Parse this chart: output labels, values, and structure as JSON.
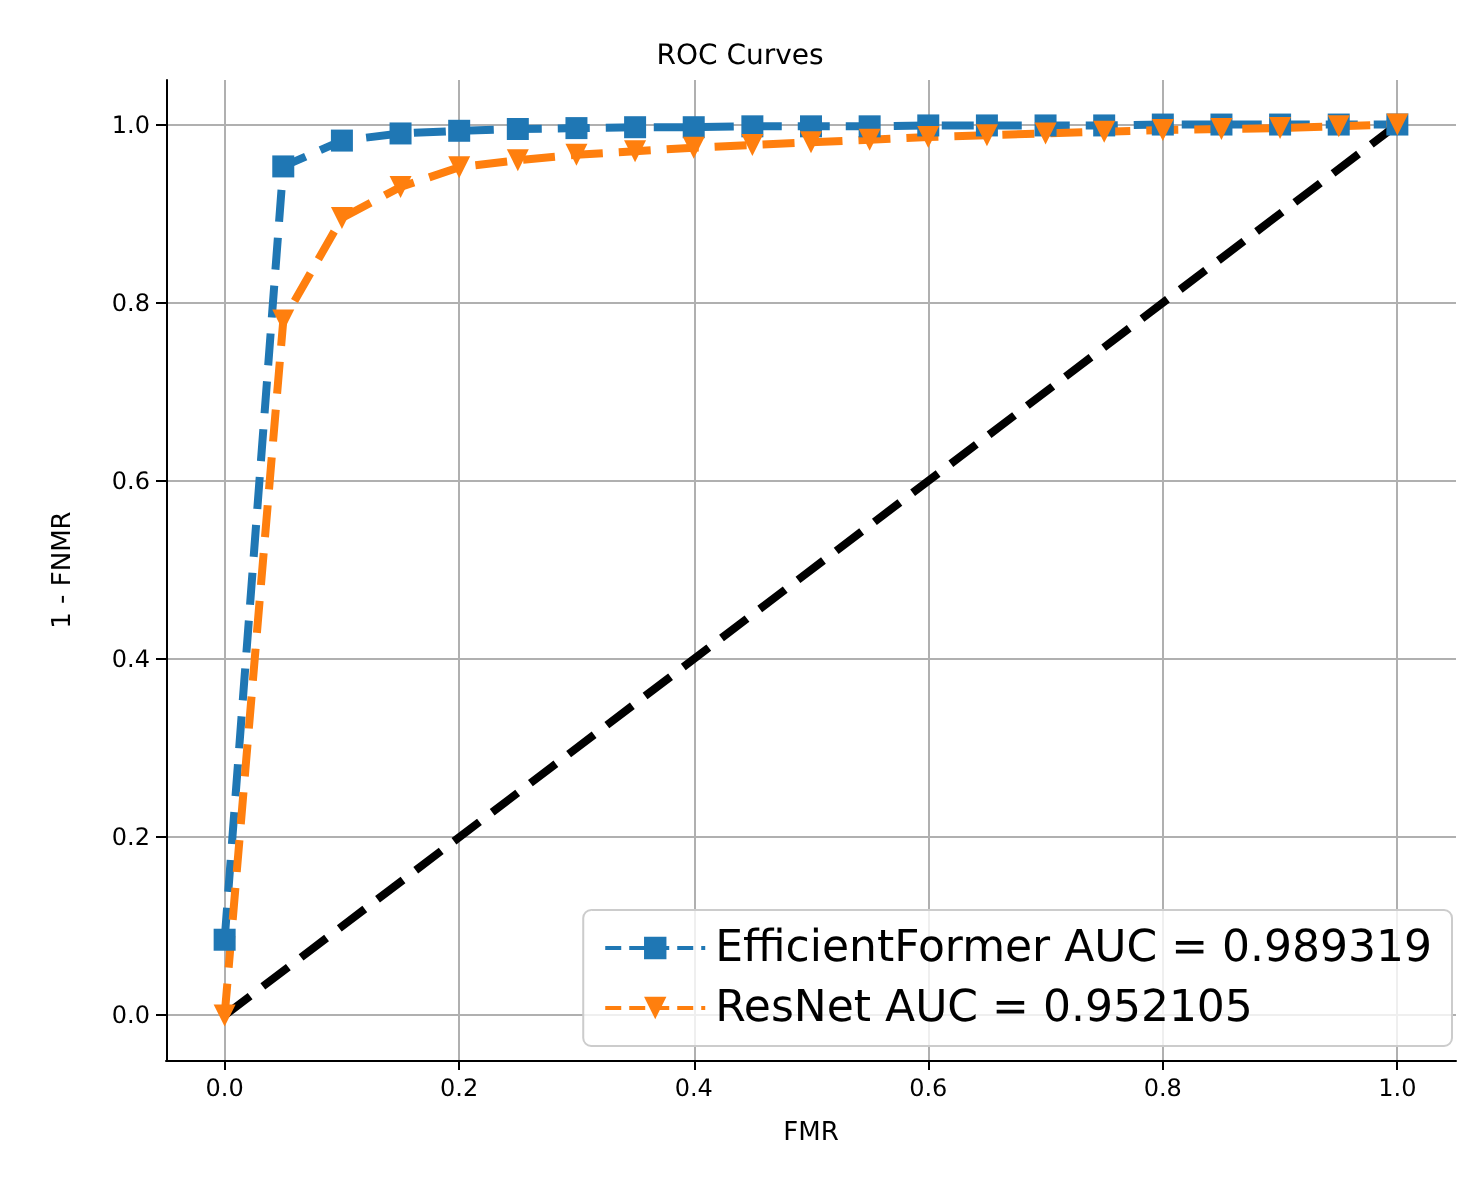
{
  "chart_data": {
    "type": "line",
    "title": "ROC Curves",
    "xlabel": "FMR",
    "ylabel": "1 - FNMR",
    "xlim": [
      -0.05,
      1.05
    ],
    "ylim": [
      -0.05,
      1.05
    ],
    "xticks": [
      {
        "value": 0,
        "label": "0.0"
      },
      {
        "value": 0.2,
        "label": "0.2"
      },
      {
        "value": 0.4,
        "label": "0.4"
      },
      {
        "value": 0.6,
        "label": "0.6"
      },
      {
        "value": 0.8,
        "label": "0.8"
      },
      {
        "value": 1,
        "label": "1.0"
      }
    ],
    "yticks": [
      {
        "value": 0,
        "label": "0.0"
      },
      {
        "value": 0.2,
        "label": "0.2"
      },
      {
        "value": 0.4,
        "label": "0.4"
      },
      {
        "value": 0.6,
        "label": "0.6"
      },
      {
        "value": 0.8,
        "label": "0.8"
      },
      {
        "value": 1,
        "label": "1.0"
      }
    ],
    "grid": true,
    "legend": "bottom right",
    "line_style": "dashed",
    "series": [
      {
        "name": "EfficientFormer AUC = 0.989319",
        "color": "#1f77b4",
        "marker": "square",
        "x": [
          0,
          0.05,
          0.1,
          0.15,
          0.2,
          0.25,
          0.3,
          0.35,
          0.4,
          0.45,
          0.5,
          0.55,
          0.6,
          0.65,
          0.7,
          0.75,
          0.8,
          0.85,
          0.9,
          0.95,
          1
        ],
        "values": [
          0.085,
          0.953,
          0.982,
          0.99,
          0.993,
          0.995,
          0.996,
          0.997,
          0.997,
          0.998,
          0.998,
          0.998,
          0.999,
          0.999,
          0.999,
          0.999,
          1,
          1,
          1,
          1,
          1
        ]
      },
      {
        "name": "ResNet AUC = 0.952105",
        "color": "#ff7f0e",
        "marker": "triangle",
        "x": [
          0,
          0.05,
          0.1,
          0.15,
          0.2,
          0.25,
          0.3,
          0.35,
          0.4,
          0.45,
          0.5,
          0.55,
          0.6,
          0.65,
          0.7,
          0.75,
          0.8,
          0.85,
          0.9,
          0.95,
          1
        ],
        "values": [
          0,
          0.78,
          0.895,
          0.93,
          0.952,
          0.96,
          0.966,
          0.97,
          0.974,
          0.977,
          0.98,
          0.983,
          0.986,
          0.988,
          0.99,
          0.992,
          0.994,
          0.995,
          0.996,
          0.998,
          1
        ]
      },
      {
        "color": "#000000",
        "marker": "none",
        "x": [
          0,
          1
        ],
        "values": [
          0,
          1
        ]
      }
    ]
  }
}
